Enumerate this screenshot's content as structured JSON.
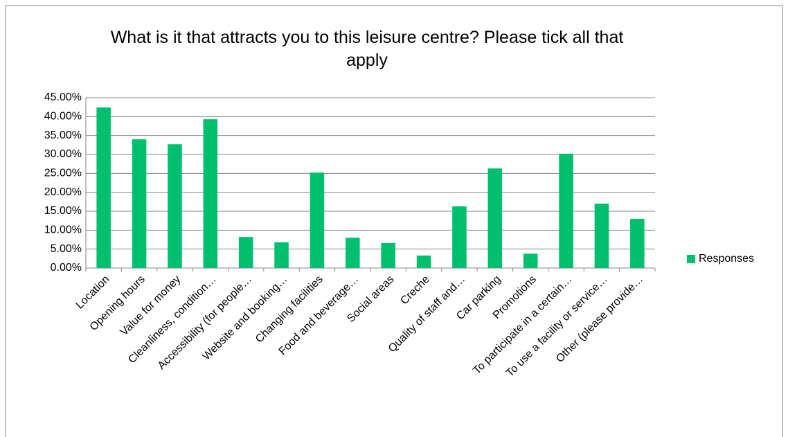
{
  "chart_data": {
    "type": "bar",
    "title": "What is it that attracts you to this leisure centre? Please tick all that apply",
    "categories": [
      "Location",
      "Opening hours",
      "Value for money",
      "Cleanliness, condition…",
      "Accessibility (for people…",
      "Website and booking…",
      "Changing facilities",
      "Food and beverage…",
      "Social areas",
      "Creche",
      "Quality of staff and…",
      "Car parking",
      "Promotions",
      "To participate in a certain…",
      "To use a facility or service…",
      "Other (please provide…"
    ],
    "series": [
      {
        "name": "Responses",
        "color": "#00c06f",
        "values": [
          42.4,
          34.0,
          32.7,
          39.3,
          8.2,
          6.8,
          25.2,
          8.0,
          6.6,
          3.3,
          16.3,
          26.3,
          3.8,
          30.2,
          17.0,
          13.0
        ]
      }
    ],
    "ylim": [
      0,
      45
    ],
    "yticks": [
      {
        "value": 0,
        "label": "0.00%"
      },
      {
        "value": 5,
        "label": "5.00%"
      },
      {
        "value": 10,
        "label": "10.00%"
      },
      {
        "value": 15,
        "label": "15.00%"
      },
      {
        "value": 20,
        "label": "20.00%"
      },
      {
        "value": 25,
        "label": "25.00%"
      },
      {
        "value": 30,
        "label": "30.00%"
      },
      {
        "value": 35,
        "label": "35.00%"
      },
      {
        "value": 40,
        "label": "40.00%"
      },
      {
        "value": 45,
        "label": "45.00%"
      }
    ],
    "grid": true,
    "legend": "right"
  }
}
